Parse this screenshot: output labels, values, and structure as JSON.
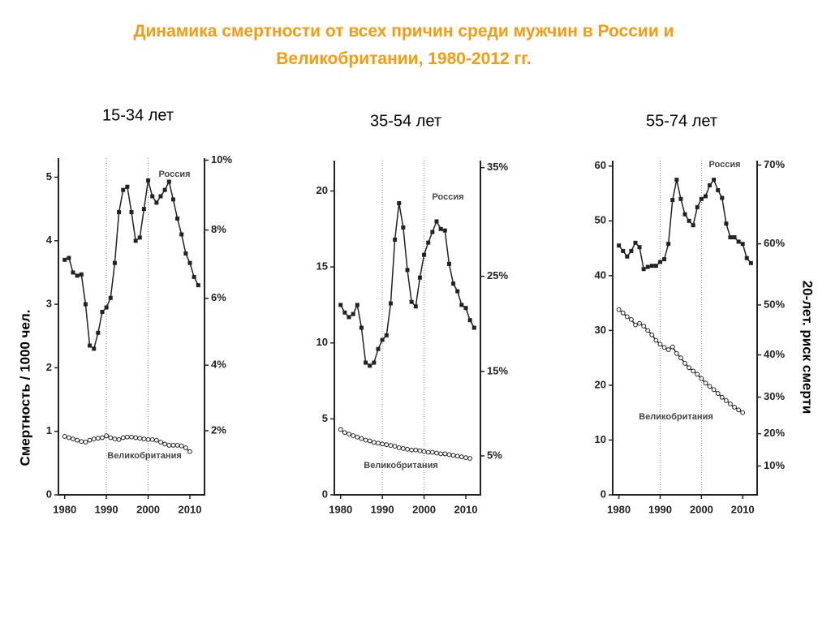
{
  "title": "Динамика смертности от всех причин среди мужчин в России и Великобритании, 1980-2012 гг.",
  "y_axis_label": "Смертность / 1000 чел.",
  "y2_axis_label": "20-лет. риск смерти",
  "chart_data": [
    {
      "type": "line",
      "title": "15-34 лет",
      "x": [
        1980,
        1981,
        1982,
        1983,
        1984,
        1985,
        1986,
        1987,
        1988,
        1989,
        1990,
        1991,
        1992,
        1993,
        1994,
        1995,
        1996,
        1997,
        1998,
        1999,
        2000,
        2001,
        2002,
        2003,
        2004,
        2005,
        2006,
        2007,
        2008,
        2009,
        2010,
        2011,
        2012
      ],
      "xlim": [
        1978.5,
        2013.5
      ],
      "xticks": [
        1980,
        1990,
        2000,
        2010
      ],
      "grid_x": [
        1990,
        2000
      ],
      "ylim": [
        0,
        5.3
      ],
      "yticks": [
        0,
        1,
        2,
        3,
        4,
        5
      ],
      "y2scale": "risk",
      "y2ticks": [
        {
          "value": 2,
          "label": "2%"
        },
        {
          "value": 4,
          "label": "4%"
        },
        {
          "value": 6,
          "label": "6%"
        },
        {
          "value": 8,
          "label": "8%"
        },
        {
          "value": 10,
          "label": "10%"
        }
      ],
      "series": [
        {
          "name": "Россия",
          "color": "#222222",
          "marker": "square",
          "values": [
            3.7,
            3.73,
            3.5,
            3.45,
            3.47,
            3.0,
            2.35,
            2.3,
            2.55,
            2.88,
            2.95,
            3.1,
            3.65,
            4.45,
            4.8,
            4.85,
            4.45,
            4.0,
            4.05,
            4.5,
            4.95,
            4.7,
            4.6,
            4.7,
            4.8,
            4.93,
            4.65,
            4.35,
            4.1,
            3.8,
            3.65,
            3.43,
            3.3
          ]
        },
        {
          "name": "Великобритания",
          "color": "#222222",
          "marker": "circle",
          "values": [
            0.92,
            0.9,
            0.88,
            0.86,
            0.84,
            0.83,
            0.86,
            0.88,
            0.89,
            0.9,
            0.93,
            0.9,
            0.88,
            0.87,
            0.9,
            0.91,
            0.91,
            0.9,
            0.89,
            0.88,
            0.87,
            0.87,
            0.86,
            0.83,
            0.8,
            0.78,
            0.78,
            0.78,
            0.77,
            0.74,
            0.68,
            null,
            null
          ]
        }
      ]
    },
    {
      "type": "line",
      "title": "35-54 лет",
      "x": [
        1980,
        1981,
        1982,
        1983,
        1984,
        1985,
        1986,
        1987,
        1988,
        1989,
        1990,
        1991,
        1992,
        1993,
        1994,
        1995,
        1996,
        1997,
        1998,
        1999,
        2000,
        2001,
        2002,
        2003,
        2004,
        2005,
        2006,
        2007,
        2008,
        2009,
        2010,
        2011,
        2012
      ],
      "xlim": [
        1978.5,
        2013.5
      ],
      "xticks": [
        1980,
        1990,
        2000,
        2010
      ],
      "grid_x": [
        1990,
        2000
      ],
      "ylim": [
        0,
        22
      ],
      "yticks": [
        0,
        5,
        10,
        15,
        20
      ],
      "y2scale": "risk",
      "y2ticks": [
        {
          "value": 5,
          "label": "5%"
        },
        {
          "value": 15,
          "label": "15%"
        },
        {
          "value": 25,
          "label": "25%"
        },
        {
          "value": 35,
          "label": "35%"
        }
      ],
      "series": [
        {
          "name": "Россия",
          "color": "#222222",
          "marker": "square",
          "values": [
            12.5,
            12.0,
            11.7,
            11.9,
            12.5,
            11.0,
            8.7,
            8.5,
            8.7,
            9.6,
            10.2,
            10.5,
            12.6,
            16.8,
            19.2,
            17.6,
            14.8,
            12.7,
            12.4,
            14.3,
            15.8,
            16.6,
            17.3,
            18.0,
            17.5,
            17.4,
            15.2,
            13.9,
            13.4,
            12.5,
            12.3,
            11.5,
            11.0
          ]
        },
        {
          "name": "Великобритания",
          "color": "#222222",
          "marker": "circle",
          "values": [
            4.3,
            4.1,
            4.0,
            3.9,
            3.8,
            3.7,
            3.6,
            3.55,
            3.45,
            3.4,
            3.35,
            3.3,
            3.25,
            3.2,
            3.1,
            3.05,
            3.0,
            2.95,
            2.95,
            2.9,
            2.85,
            2.8,
            2.8,
            2.75,
            2.7,
            2.7,
            2.65,
            2.6,
            2.55,
            2.5,
            2.45,
            2.4,
            null
          ]
        }
      ]
    },
    {
      "type": "line",
      "title": "55-74 лет",
      "x": [
        1980,
        1981,
        1982,
        1983,
        1984,
        1985,
        1986,
        1987,
        1988,
        1989,
        1990,
        1991,
        1992,
        1993,
        1994,
        1995,
        1996,
        1997,
        1998,
        1999,
        2000,
        2001,
        2002,
        2003,
        2004,
        2005,
        2006,
        2007,
        2008,
        2009,
        2010,
        2011,
        2012
      ],
      "xlim": [
        1978.5,
        2013.5
      ],
      "xticks": [
        1980,
        1990,
        2000,
        2010
      ],
      "grid_x": [
        1990,
        2000
      ],
      "ylim": [
        0,
        61
      ],
      "yticks": [
        0,
        10,
        20,
        30,
        40,
        50,
        60
      ],
      "y2scale": "risk",
      "y2ticks": [
        {
          "value": 10,
          "label": "10%"
        },
        {
          "value": 20,
          "label": "20%"
        },
        {
          "value": 30,
          "label": "30%"
        },
        {
          "value": 40,
          "label": "40%"
        },
        {
          "value": 50,
          "label": "50%"
        },
        {
          "value": 60,
          "label": "60%"
        },
        {
          "value": 70,
          "label": "70%"
        }
      ],
      "series": [
        {
          "name": "Россия",
          "color": "#222222",
          "marker": "square",
          "values": [
            45.5,
            44.5,
            43.5,
            44.5,
            46.0,
            45.2,
            41.2,
            41.6,
            41.8,
            41.8,
            42.5,
            43.0,
            45.8,
            53.8,
            57.5,
            54.0,
            51.2,
            50.0,
            49.2,
            52.5,
            54.0,
            54.5,
            56.5,
            57.5,
            55.6,
            54.2,
            49.5,
            47.0,
            47.0,
            46.2,
            45.8,
            43.2,
            42.3
          ]
        },
        {
          "name": "Великобритания",
          "color": "#222222",
          "marker": "circle",
          "values": [
            33.8,
            33.2,
            32.5,
            32.0,
            31.0,
            31.3,
            30.8,
            30.0,
            29.2,
            28.2,
            27.5,
            26.9,
            26.5,
            27.0,
            25.8,
            25.0,
            24.0,
            23.2,
            22.6,
            22.0,
            21.2,
            20.4,
            19.8,
            19.2,
            18.5,
            17.8,
            17.2,
            16.6,
            16.0,
            15.5,
            15.0,
            null,
            null
          ]
        }
      ]
    }
  ]
}
